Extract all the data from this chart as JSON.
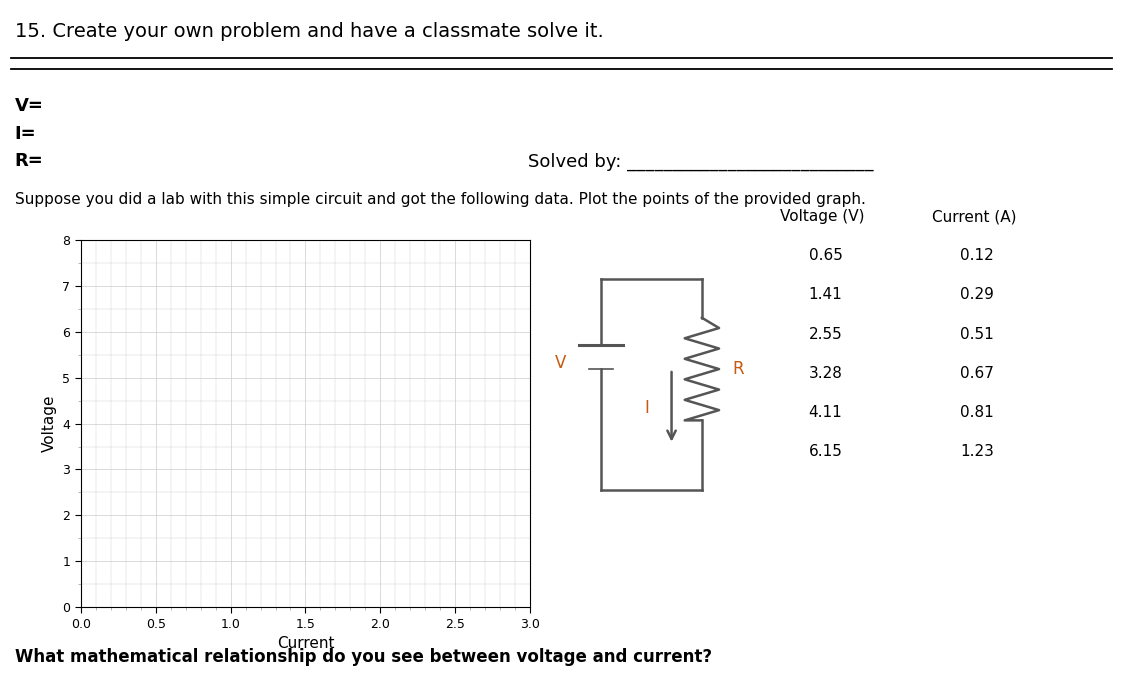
{
  "title": "15. Create your own problem and have a classmate solve it.",
  "v_label": "V=",
  "i_label": "I=",
  "r_label": "R=",
  "solved_by_text": "Solved by: ___________________________",
  "instruction": "Suppose you did a lab with this simple circuit and got the following data. Plot the points of the provided graph.",
  "graph_xlabel": "Current",
  "graph_ylabel": "Voltage",
  "graph_xlim": [
    0.0,
    3.0
  ],
  "graph_ylim": [
    0,
    8
  ],
  "graph_xticks": [
    0.0,
    0.5,
    1.0,
    1.5,
    2.0,
    2.5,
    3.0
  ],
  "graph_yticks": [
    0,
    1,
    2,
    3,
    4,
    5,
    6,
    7,
    8
  ],
  "table_header": [
    "Voltage (V)",
    "Current (A)"
  ],
  "table_data": [
    [
      0.65,
      0.12
    ],
    [
      1.41,
      0.29
    ],
    [
      2.55,
      0.51
    ],
    [
      3.28,
      0.67
    ],
    [
      4.11,
      0.81
    ],
    [
      6.15,
      1.23
    ]
  ],
  "question": "What mathematical relationship do you see between voltage and current?",
  "bg_color": "#ffffff",
  "grid_color": "#cccccc",
  "text_color": "#000000",
  "orange_color": "#c55a11",
  "title_fontsize": 14,
  "label_fontsize": 12,
  "instruction_fontsize": 11,
  "table_fontsize": 11,
  "question_fontsize": 12
}
